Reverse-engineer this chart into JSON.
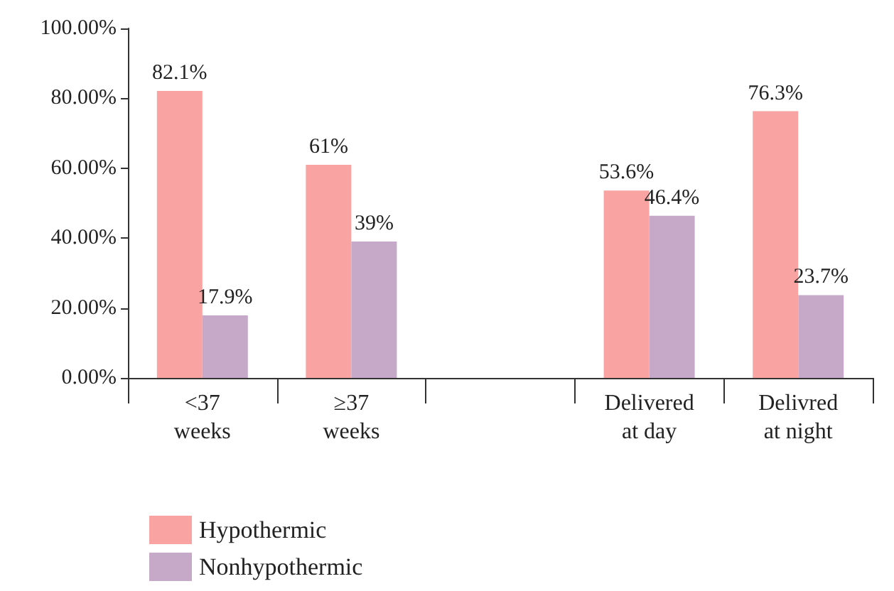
{
  "chart_data": {
    "type": "bar",
    "categories": [
      "<37\nweeks",
      "≥37\nweeks",
      null,
      "Delivered\nat day",
      "Delivred\nat night"
    ],
    "series": [
      {
        "name": "Hypothermic",
        "color": "#f9a3a3",
        "values": [
          82.1,
          61,
          null,
          53.6,
          76.3
        ],
        "value_labels": [
          "82.1%",
          "61%",
          null,
          "53.6%",
          "76.3%"
        ]
      },
      {
        "name": "Nonhypothermic",
        "color": "#c6a9c9",
        "values": [
          17.9,
          39,
          null,
          46.4,
          23.7
        ],
        "value_labels": [
          "17.9%",
          "39%",
          null,
          "46.4%",
          "23.7%"
        ]
      }
    ],
    "ylim": [
      0,
      100
    ],
    "yticks": [
      {
        "value": 0,
        "label": "0.00%"
      },
      {
        "value": 20,
        "label": "20.00%"
      },
      {
        "value": 40,
        "label": "40.00%"
      },
      {
        "value": 60,
        "label": "60.00%"
      },
      {
        "value": 80,
        "label": "80.00%"
      },
      {
        "value": 100,
        "label": "100.00%"
      }
    ],
    "grid": false,
    "legend": "bottom left"
  }
}
